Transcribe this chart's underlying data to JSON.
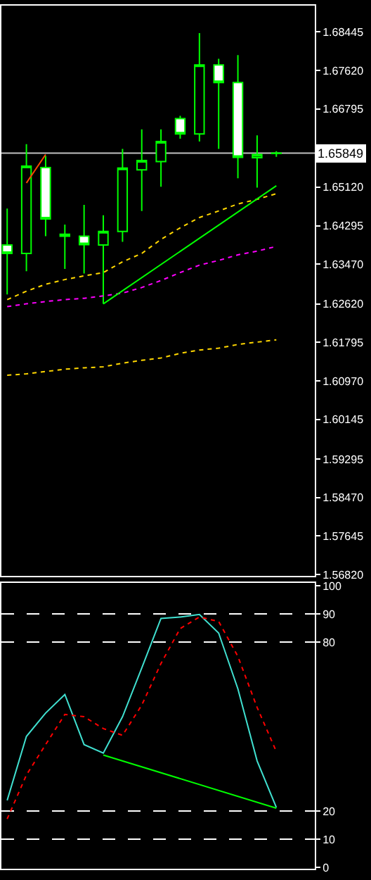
{
  "chart_data": [
    {
      "type": "candlestick",
      "categories": [
        null,
        null,
        null,
        null,
        null,
        null,
        null,
        null,
        null,
        null,
        null,
        null,
        null,
        null,
        null
      ],
      "ohlc": [
        [
          1.6388,
          1.6466,
          1.6282,
          1.637
        ],
        [
          1.637,
          1.6604,
          1.6332,
          1.6557
        ],
        [
          1.6554,
          1.6579,
          1.6407,
          1.6444
        ],
        [
          1.6411,
          1.6432,
          1.6337,
          1.6407
        ],
        [
          1.6407,
          1.6474,
          1.6327,
          1.6389
        ],
        [
          1.6388,
          1.6452,
          1.6262,
          1.6417
        ],
        [
          1.6417,
          1.6594,
          1.6395,
          1.6553
        ],
        [
          1.6549,
          1.6636,
          1.6461,
          1.6569
        ],
        [
          1.6567,
          1.6636,
          1.6513,
          1.661
        ],
        [
          1.6659,
          1.6665,
          1.6616,
          1.6626
        ],
        [
          1.6626,
          1.6842,
          1.661,
          1.6774
        ],
        [
          1.6774,
          1.6787,
          1.6594,
          1.6736
        ],
        [
          1.6736,
          1.6795,
          1.6531,
          1.6576
        ],
        [
          1.6575,
          1.6623,
          1.6511,
          1.6582
        ],
        [
          1.6584,
          1.6589,
          1.6577,
          1.65849
        ]
      ],
      "color": "#00ff00",
      "series": [
        {
          "type": "line",
          "color": "#ffd700",
          "line_style": "dotted",
          "values": [
            1.6271,
            1.6289,
            1.6304,
            1.6314,
            1.6322,
            1.6329,
            1.6352,
            1.637,
            1.64,
            1.6425,
            1.6447,
            1.6461,
            1.6476,
            1.6486,
            1.6498
          ]
        },
        {
          "type": "line",
          "color": "#ff00ff",
          "line_style": "dotted",
          "values": [
            1.6256,
            1.6262,
            1.6267,
            1.6271,
            1.6274,
            1.6279,
            1.6285,
            1.6297,
            1.6312,
            1.6329,
            1.6345,
            1.6355,
            1.6367,
            1.6375,
            1.6385
          ]
        },
        {
          "type": "line",
          "color": "#ffd700",
          "line_style": "dotted",
          "values": [
            1.6109,
            1.6112,
            1.6117,
            1.6122,
            1.6125,
            1.6127,
            1.6135,
            1.6141,
            1.6146,
            1.6156,
            1.6163,
            1.6167,
            1.6175,
            1.618,
            1.6185
          ]
        },
        {
          "type": "line",
          "color": "#00ff00",
          "line_style": "solid",
          "values": [
            null,
            null,
            null,
            null,
            null,
            1.6262,
            null,
            null,
            null,
            null,
            null,
            null,
            null,
            null,
            1.6515
          ]
        },
        {
          "type": "line",
          "color": "#ff4500",
          "line_style": "solid",
          "values": [
            null,
            1.6521,
            1.6582,
            null,
            null,
            null,
            null,
            null,
            null,
            null,
            null,
            null,
            null,
            null,
            null
          ]
        }
      ],
      "ylim": [
        1.5679,
        1.6901
      ],
      "yticks": [
        1.68445,
        {
          "value": 1.6762,
          "label": "1.67620"
        },
        1.66795,
        {
          "value": 1.6512,
          "label": "1.65120"
        },
        1.64295,
        {
          "value": 1.6347,
          "label": "1.63470"
        },
        {
          "value": 1.6262,
          "label": "1.62620"
        },
        1.61795,
        {
          "value": 1.6097,
          "label": "1.60970"
        },
        1.60145,
        1.59295,
        {
          "value": 1.5847,
          "label": "1.58470"
        },
        1.57645,
        {
          "value": 1.5682,
          "label": "1.56820"
        }
      ],
      "ref_lines": [
        {
          "axis": "y",
          "value": 1.65849,
          "label": "1.65849",
          "color": "#c0c0c0",
          "line_style": "solid"
        }
      ],
      "grid": false,
      "tick_labels": "y"
    },
    {
      "type": "line",
      "categories": [
        null,
        null,
        null,
        null,
        null,
        null,
        null,
        null,
        null,
        null,
        null,
        null,
        null,
        null,
        null
      ],
      "series": [
        {
          "color": "#40e0d0",
          "line_style": "solid",
          "values": [
            23.8,
            46.5,
            54.8,
            61.4,
            43.6,
            40.6,
            53.5,
            70.8,
            88.4,
            88.9,
            89.8,
            83.2,
            63.4,
            37.8,
            21.3
          ]
        },
        {
          "color": "#ff0000",
          "line_style": "dotted",
          "values": [
            17.2,
            32.8,
            43.6,
            54.3,
            53.5,
            49.3,
            46.9,
            57.6,
            72.4,
            84.8,
            88.9,
            87.3,
            74.9,
            56.8,
            41.1
          ]
        },
        {
          "color": "#00ff00",
          "line_style": "solid",
          "values": [
            null,
            null,
            null,
            null,
            null,
            39.9,
            null,
            null,
            null,
            null,
            null,
            null,
            null,
            null,
            21.0
          ]
        }
      ],
      "ylim": [
        -0.5,
        101
      ],
      "yticks": [
        0,
        10,
        20,
        80,
        90,
        100
      ],
      "ref_lines": [
        {
          "axis": "y",
          "value": 90,
          "color": "#ffffff",
          "line_style": "dashed"
        },
        {
          "axis": "y",
          "value": 80,
          "color": "#ffffff",
          "line_style": "dashed"
        },
        {
          "axis": "y",
          "value": 20,
          "color": "#ffffff",
          "line_style": "dashed"
        },
        {
          "axis": "y",
          "value": 10,
          "color": "#ffffff",
          "line_style": "dashed"
        }
      ],
      "grid": false,
      "tick_labels": "y"
    }
  ]
}
